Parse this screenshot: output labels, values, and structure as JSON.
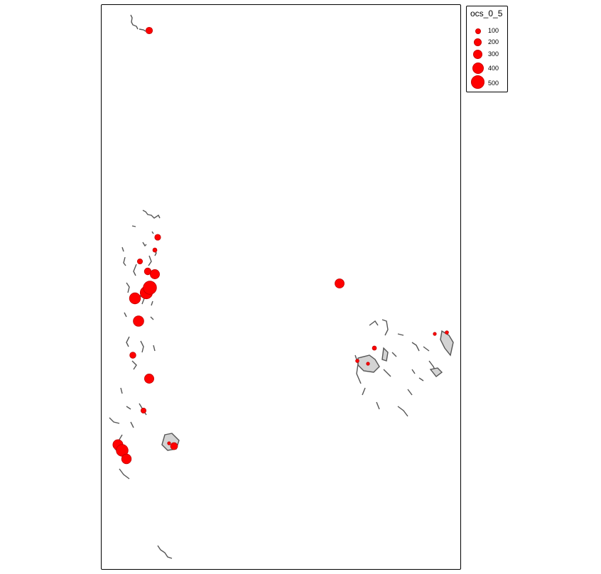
{
  "map": {
    "fill_color": "#ff0000",
    "land_fill": "#d3d3d3",
    "land_stroke": "#555555",
    "symbol_values": [
      150,
      120,
      60,
      90,
      160,
      300,
      420,
      520,
      600,
      380,
      300,
      130,
      90,
      60,
      40,
      350,
      480,
      320,
      170,
      40,
      30,
      20,
      20
    ]
  },
  "legend": {
    "title": "ocs_0_5",
    "items": [
      {
        "label": "100"
      },
      {
        "label": "200"
      },
      {
        "label": "300"
      },
      {
        "label": "400"
      },
      {
        "label": "500"
      }
    ]
  }
}
